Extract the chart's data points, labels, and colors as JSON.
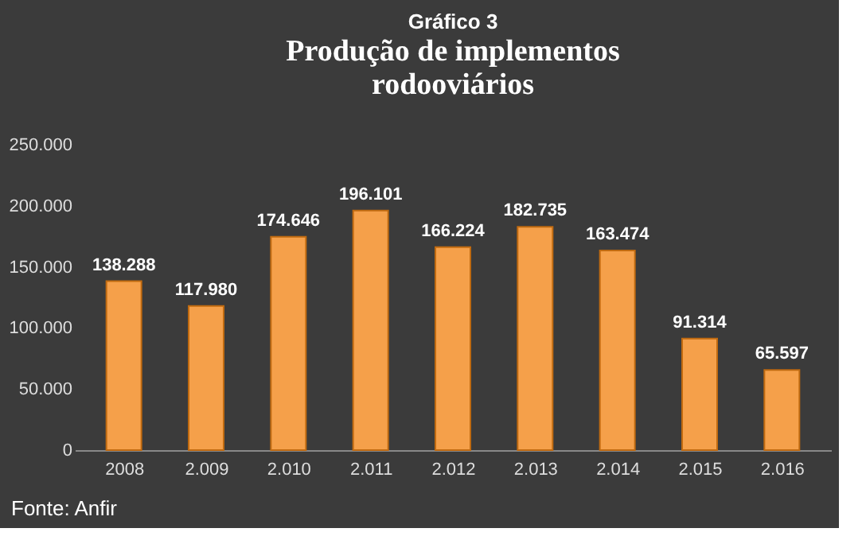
{
  "chart_data": {
    "type": "bar",
    "title": "Gráfico 3",
    "subtitle": "Produção de implementos rodooviários",
    "categories": [
      "2008",
      "2.009",
      "2.010",
      "2.011",
      "2.012",
      "2.013",
      "2.014",
      "2.015",
      "2.016"
    ],
    "values": [
      138288,
      117980,
      174646,
      196101,
      166224,
      182735,
      163474,
      91314,
      65597
    ],
    "value_labels": [
      "138.288",
      "117.980",
      "174.646",
      "196.101",
      "166.224",
      "182.735",
      "163.474",
      "91.314",
      "65.597"
    ],
    "color": "#f5a04a",
    "ylim": [
      0,
      250000
    ],
    "yticks": [
      0,
      {
        "value": 50000,
        "label": "50.000"
      },
      {
        "value": 100000,
        "label": "100.000"
      },
      {
        "value": 150000,
        "label": "150.000"
      },
      {
        "value": 200000,
        "label": "200.000"
      },
      {
        "value": 250000,
        "label": "250.000"
      }
    ],
    "grid": false,
    "annotations": [
      "Fonte: Anfir"
    ]
  }
}
